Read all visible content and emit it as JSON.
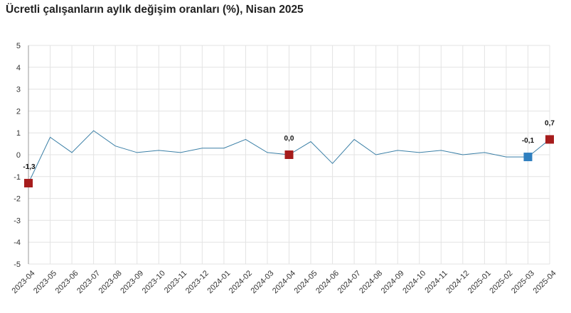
{
  "chart_data": {
    "type": "line",
    "title": "Ücretli çalışanların aylık değişim oranları (%), Nisan 2025",
    "xlabel": "",
    "ylabel": "",
    "ylim": [
      -5,
      5
    ],
    "yticks": [
      5,
      4,
      3,
      2,
      1,
      0,
      -1,
      -2,
      -3,
      -4,
      -5
    ],
    "grid": true,
    "legend": "none",
    "categories": [
      "2023-04",
      "2023-05",
      "2023-06",
      "2023-07",
      "2023-08",
      "2023-09",
      "2023-10",
      "2023-11",
      "2023-12",
      "2024-01",
      "2024-02",
      "2024-03",
      "2024-04",
      "2024-05",
      "2024-06",
      "2024-07",
      "2024-08",
      "2024-09",
      "2024-10",
      "2024-11",
      "2024-12",
      "2025-01",
      "2025-02",
      "2025-03",
      "2025-04"
    ],
    "series": [
      {
        "values": [
          -1.3,
          0.8,
          0.1,
          1.1,
          0.4,
          0.1,
          0.2,
          0.1,
          0.3,
          0.3,
          0.7,
          0.1,
          0.0,
          0.6,
          -0.4,
          0.7,
          0.0,
          0.2,
          0.1,
          0.2,
          0.0,
          0.1,
          -0.1,
          -0.1,
          0.7
        ],
        "color": "#3a7fa6"
      }
    ],
    "highlighted_points": [
      {
        "category": "2023-04",
        "value": -1.3,
        "label": "-1,3",
        "color": "#a61c1c"
      },
      {
        "category": "2024-04",
        "value": 0.0,
        "label": "0,0",
        "color": "#a61c1c"
      },
      {
        "category": "2025-03",
        "value": -0.1,
        "label": "-0,1",
        "color": "#2f7fbf"
      },
      {
        "category": "2025-04",
        "value": 0.7,
        "label": "0,7",
        "color": "#a61c1c"
      }
    ]
  }
}
